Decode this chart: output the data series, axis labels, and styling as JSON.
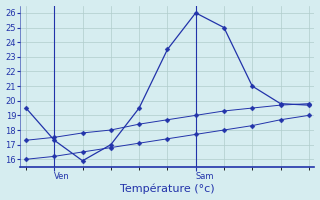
{
  "line1_x": [
    0,
    1,
    2,
    3,
    4,
    5,
    6,
    7,
    8,
    9,
    10
  ],
  "line1_y": [
    19.5,
    17.3,
    15.9,
    17.0,
    19.5,
    23.5,
    26.0,
    25.0,
    21.0,
    19.8,
    19.7
  ],
  "line2_x": [
    0,
    1,
    2,
    3,
    4,
    5,
    6,
    7,
    8,
    9,
    10
  ],
  "line2_y": [
    17.3,
    17.5,
    17.8,
    18.0,
    18.4,
    18.7,
    19.0,
    19.3,
    19.5,
    19.7,
    19.8
  ],
  "line3_x": [
    0,
    1,
    2,
    3,
    4,
    5,
    6,
    7,
    8,
    9,
    10
  ],
  "line3_y": [
    16.0,
    16.2,
    16.5,
    16.8,
    17.1,
    17.4,
    17.7,
    18.0,
    18.3,
    18.7,
    19.0
  ],
  "line_color": "#2233aa",
  "bg_color": "#d6edf0",
  "grid_color": "#b0cccc",
  "ylim": [
    15.5,
    26.5
  ],
  "yticks": [
    16,
    17,
    18,
    19,
    20,
    21,
    22,
    23,
    24,
    25,
    26
  ],
  "xlim": [
    -0.2,
    10.2
  ],
  "ven_x": 1.0,
  "sam_x": 6.0,
  "xlabel": "Température (°c)",
  "xlabel_fontsize": 8,
  "tick_fontsize": 6,
  "marker": "D",
  "markersize": 2.5
}
